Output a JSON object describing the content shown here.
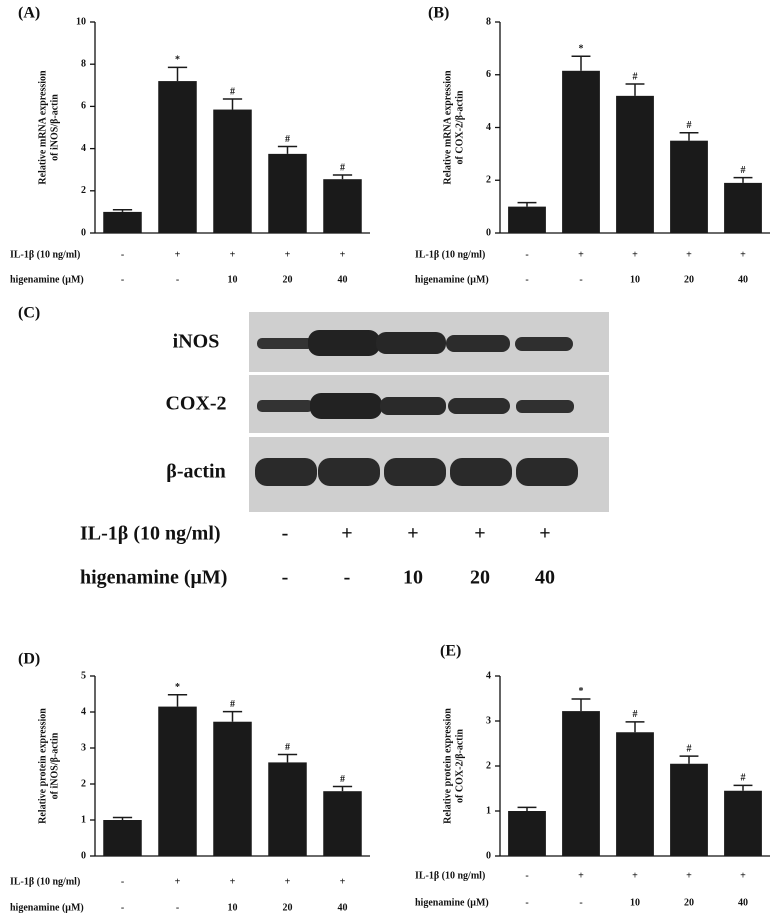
{
  "chart_data": [
    {
      "type": "bar",
      "panel": "(A)",
      "ylabel": [
        "Relative mRNA expression",
        "of iNOS/β-actin"
      ],
      "color": "#1a1a1a",
      "values": [
        1.0,
        7.2,
        5.85,
        3.75,
        2.55
      ],
      "errors": [
        0.1,
        0.65,
        0.5,
        0.35,
        0.2
      ],
      "annotations": [
        null,
        "*",
        "#",
        "#",
        "#"
      ],
      "ylim": [
        0,
        10
      ],
      "yticks": [
        0,
        2,
        4,
        6,
        8,
        10
      ],
      "conditions": [
        {
          "label": "IL-1β (10 ng/ml)",
          "values": [
            "-",
            "+",
            "+",
            "+",
            "+"
          ]
        },
        {
          "label": "higenamine (μM)",
          "values": [
            "-",
            "-",
            "10",
            "20",
            "40"
          ]
        }
      ]
    },
    {
      "type": "bar",
      "panel": "(B)",
      "ylabel": [
        "Relative mRNA expression",
        "of COX-2/β-actin"
      ],
      "color": "#1a1a1a",
      "values": [
        1.0,
        6.15,
        5.2,
        3.5,
        1.9
      ],
      "errors": [
        0.15,
        0.55,
        0.45,
        0.3,
        0.2
      ],
      "annotations": [
        null,
        "*",
        "#",
        "#",
        "#"
      ],
      "ylim": [
        0,
        8
      ],
      "yticks": [
        0,
        2,
        4,
        6,
        8
      ],
      "conditions": [
        {
          "label": "IL-1β (10 ng/ml)",
          "values": [
            "-",
            "+",
            "+",
            "+",
            "+"
          ]
        },
        {
          "label": "higenamine (μM)",
          "values": [
            "-",
            "-",
            "10",
            "20",
            "40"
          ]
        }
      ]
    },
    {
      "type": "bar",
      "panel": "(D)",
      "ylabel": [
        "Relative protein expression",
        "of iNOS/β-actin"
      ],
      "color": "#1a1a1a",
      "values": [
        1.0,
        4.15,
        3.73,
        2.6,
        1.8
      ],
      "errors": [
        0.07,
        0.33,
        0.28,
        0.22,
        0.13
      ],
      "annotations": [
        null,
        "*",
        "#",
        "#",
        "#"
      ],
      "ylim": [
        0,
        5
      ],
      "yticks": [
        0,
        1,
        2,
        3,
        4,
        5
      ],
      "conditions": [
        {
          "label": "IL-1β (10 ng/ml)",
          "values": [
            "-",
            "+",
            "+",
            "+",
            "+"
          ]
        },
        {
          "label": "higenamine (μM)",
          "values": [
            "-",
            "-",
            "10",
            "20",
            "40"
          ]
        }
      ]
    },
    {
      "type": "bar",
      "panel": "(E)",
      "ylabel": [
        "Relative protein expression",
        "of COX-2/β-actin"
      ],
      "color": "#1a1a1a",
      "values": [
        1.0,
        3.22,
        2.75,
        2.05,
        1.45
      ],
      "errors": [
        0.08,
        0.27,
        0.23,
        0.17,
        0.12
      ],
      "annotations": [
        null,
        "*",
        "#",
        "#",
        "#"
      ],
      "ylim": [
        0,
        4
      ],
      "yticks": [
        0,
        1,
        2,
        3,
        4
      ],
      "conditions": [
        {
          "label": "IL-1β (10 ng/ml)",
          "values": [
            "-",
            "+",
            "+",
            "+",
            "+"
          ]
        },
        {
          "label": "higenamine (μM)",
          "values": [
            "-",
            "-",
            "10",
            "20",
            "40"
          ]
        }
      ]
    }
  ],
  "blot": {
    "panel": "(C)",
    "rows": [
      "iNOS",
      "COX-2",
      "β-actin"
    ],
    "conditions": [
      {
        "label": "IL-1β (10 ng/ml)",
        "values": [
          "-",
          "+",
          "+",
          "+",
          "+"
        ]
      },
      {
        "label": "higenamine (μM)",
        "values": [
          "-",
          "-",
          "10",
          "20",
          "40"
        ]
      }
    ]
  }
}
